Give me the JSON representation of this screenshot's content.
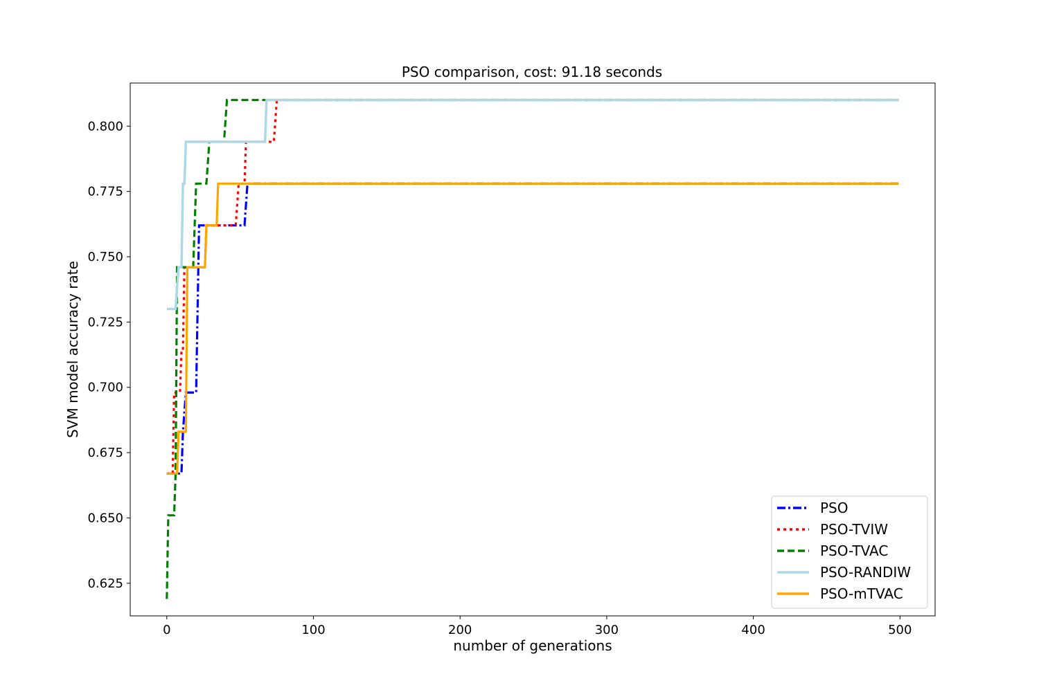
{
  "chart_data": {
    "type": "line",
    "title": "PSO comparison, cost: 91.18 seconds",
    "xlabel": "number of generations",
    "ylabel": "SVM model accuracy rate",
    "xlim": [
      -24.95,
      523.95
    ],
    "ylim": [
      0.6125,
      0.8165
    ],
    "xticks": [
      0,
      100,
      200,
      300,
      400,
      500
    ],
    "xtick_labels": [
      "0",
      "100",
      "200",
      "300",
      "400",
      "500"
    ],
    "yticks": [
      0.625,
      0.65,
      0.675,
      0.7,
      0.725,
      0.75,
      0.775,
      0.8
    ],
    "ytick_labels": [
      "0.625",
      "0.650",
      "0.675",
      "0.700",
      "0.725",
      "0.750",
      "0.775",
      "0.800"
    ],
    "grid": false,
    "legend_position": "lower right",
    "x_max": 499,
    "series": [
      {
        "name": "PSO",
        "color": "#0000ff",
        "style": "dashdot",
        "points": [
          [
            0,
            0.667
          ],
          [
            10,
            0.667
          ],
          [
            11,
            0.683
          ],
          [
            13,
            0.698
          ],
          [
            20,
            0.698
          ],
          [
            22,
            0.762
          ],
          [
            53,
            0.762
          ],
          [
            55,
            0.778
          ],
          [
            499,
            0.778
          ]
        ]
      },
      {
        "name": "PSO-TVIW",
        "color": "#ff0000",
        "style": "dotted",
        "points": [
          [
            0,
            0.667
          ],
          [
            4,
            0.667
          ],
          [
            5,
            0.698
          ],
          [
            9,
            0.698
          ],
          [
            10,
            0.714
          ],
          [
            11,
            0.714
          ],
          [
            12,
            0.746
          ],
          [
            26,
            0.746
          ],
          [
            27,
            0.762
          ],
          [
            47,
            0.762
          ],
          [
            49,
            0.778
          ],
          [
            53,
            0.778
          ],
          [
            54,
            0.794
          ],
          [
            73,
            0.794
          ],
          [
            75,
            0.81
          ],
          [
            499,
            0.81
          ]
        ]
      },
      {
        "name": "PSO-TVAC",
        "color": "#008000",
        "style": "dashed",
        "points": [
          [
            0,
            0.619
          ],
          [
            1,
            0.651
          ],
          [
            5,
            0.651
          ],
          [
            6,
            0.667
          ],
          [
            7,
            0.746
          ],
          [
            18,
            0.746
          ],
          [
            20,
            0.778
          ],
          [
            27,
            0.778
          ],
          [
            29,
            0.794
          ],
          [
            39,
            0.794
          ],
          [
            41,
            0.81
          ],
          [
            499,
            0.81
          ]
        ]
      },
      {
        "name": "PSO-RANDIW",
        "color": "#add8e6",
        "style": "solid",
        "points": [
          [
            0,
            0.73
          ],
          [
            6,
            0.73
          ],
          [
            8,
            0.746
          ],
          [
            10,
            0.746
          ],
          [
            11,
            0.778
          ],
          [
            12,
            0.778
          ],
          [
            13,
            0.794
          ],
          [
            67,
            0.794
          ],
          [
            68,
            0.81
          ],
          [
            499,
            0.81
          ]
        ]
      },
      {
        "name": "PSO-mTVAC",
        "color": "#ffa500",
        "style": "solid",
        "points": [
          [
            0,
            0.667
          ],
          [
            7,
            0.667
          ],
          [
            8,
            0.683
          ],
          [
            13,
            0.683
          ],
          [
            14,
            0.746
          ],
          [
            26,
            0.746
          ],
          [
            27,
            0.762
          ],
          [
            34,
            0.762
          ],
          [
            35,
            0.778
          ],
          [
            499,
            0.778
          ]
        ]
      }
    ]
  }
}
